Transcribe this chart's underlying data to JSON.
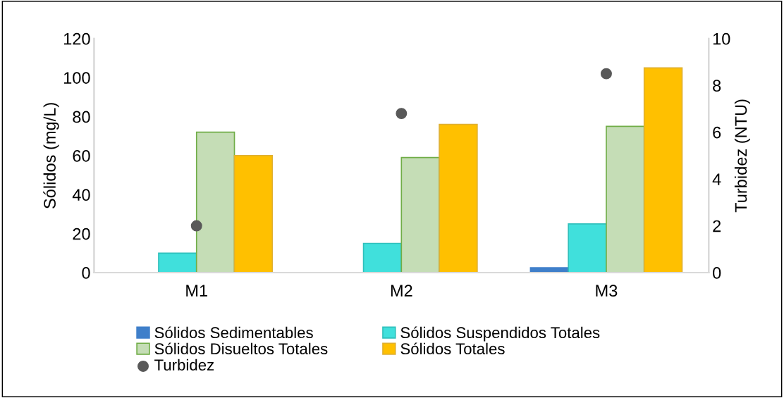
{
  "chart_data": {
    "type": "bar",
    "categories": [
      "M1",
      "M2",
      "M3"
    ],
    "ylabel": "Sólidos (mg/L)",
    "y2label": "Turbidez (NTU)",
    "ylim": [
      0,
      120
    ],
    "yticks": [
      0,
      20,
      40,
      60,
      80,
      100,
      120
    ],
    "y2lim": [
      0,
      10
    ],
    "y2ticks": [
      0,
      2,
      4,
      6,
      8,
      10
    ],
    "grid": false,
    "legend": "bottom",
    "series": [
      {
        "name": "Sólidos Sedimentables",
        "color": "#3f7fca",
        "values": [
          0,
          0,
          2.5
        ]
      },
      {
        "name": "Sólidos Suspendidos Totales",
        "color": "#40e0dc",
        "values": [
          10,
          15,
          25
        ]
      },
      {
        "name": "Sólidos Disueltos Totales",
        "color": "#c5ddb6",
        "values": [
          72,
          59,
          75
        ]
      },
      {
        "name": "Sólidos Totales",
        "color": "#ffc000",
        "values": [
          60,
          76,
          105
        ]
      },
      {
        "name": "Turbidez",
        "type": "scatter",
        "axis": "y2",
        "marker": "circle",
        "color": "#595959",
        "values": [
          2.0,
          6.8,
          8.5
        ]
      }
    ]
  }
}
